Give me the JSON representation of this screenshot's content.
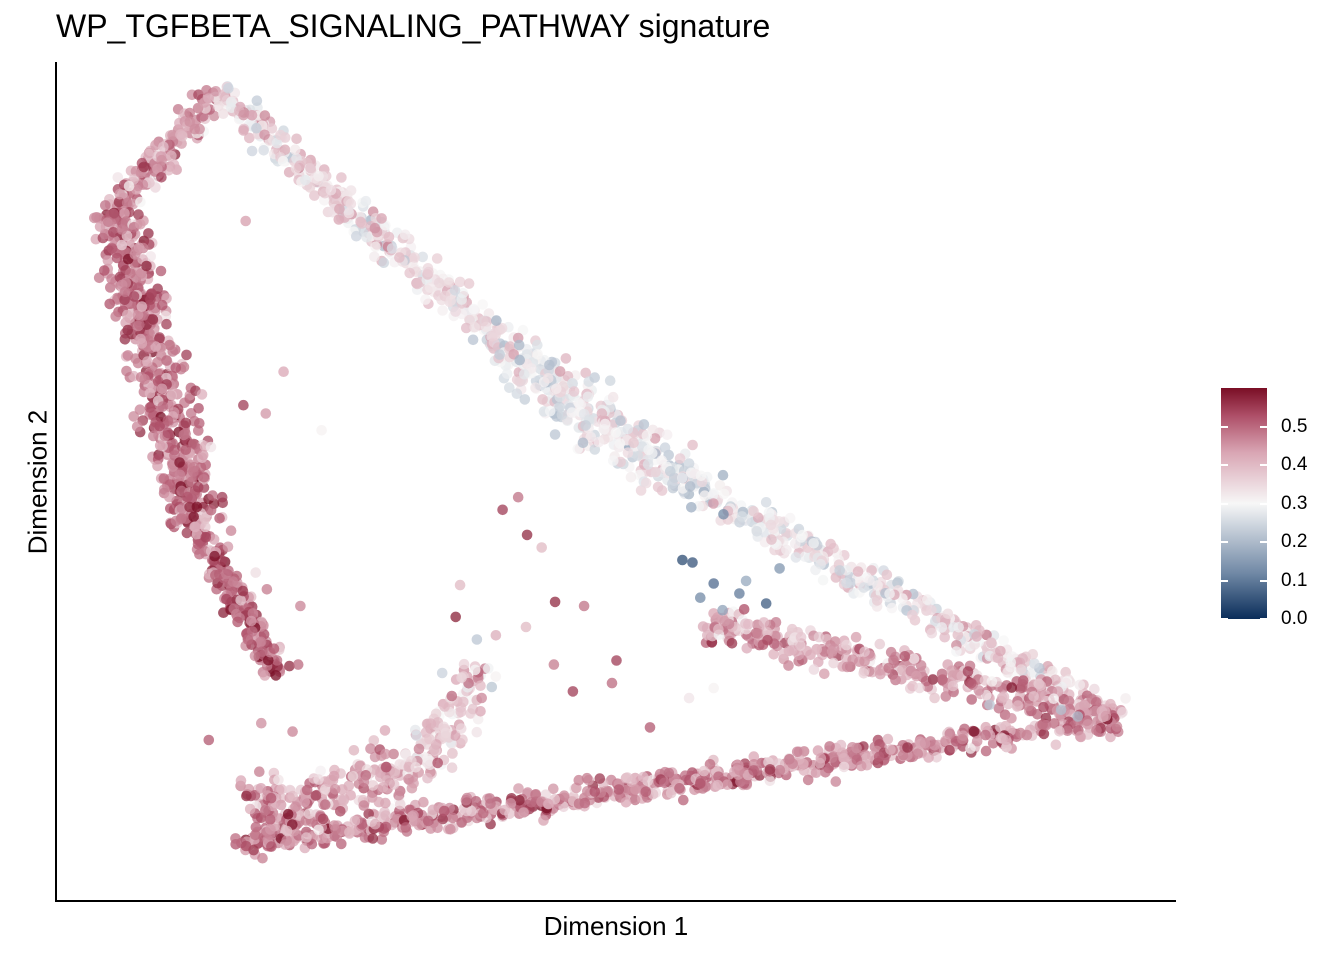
{
  "chart_data": {
    "type": "scatter",
    "title": "WP_TGFBETA_SIGNALING_PATHWAY signature",
    "xlabel": "Dimension 1",
    "ylabel": "Dimension 2",
    "x_ticks_shown": false,
    "y_ticks_shown": false,
    "grid": false,
    "legend": {
      "placement": "right",
      "type": "continuous colorbar",
      "ticks": [
        "0.0",
        "0.1",
        "0.2",
        "0.3",
        "0.4",
        "0.5"
      ],
      "tick_values": [
        0.0,
        0.1,
        0.2,
        0.3,
        0.4,
        0.5
      ],
      "range": [
        0.0,
        0.6
      ],
      "colors": {
        "low": "#0a2d5a",
        "mid": "#f7f7f7",
        "high": "#7a0e25"
      }
    },
    "xlim": [
      0,
      100
    ],
    "ylim": [
      0,
      100
    ],
    "point_opacity": 0.75,
    "branches": [
      {
        "from": [
          14.3,
          96.5
        ],
        "to": [
          5.0,
          82.0
        ],
        "values": [
          0.42,
          0.47
        ],
        "spread": 1.4
      },
      {
        "from": [
          5.0,
          82.0
        ],
        "to": [
          12.5,
          45.0
        ],
        "values": [
          0.48,
          0.5
        ],
        "spread": 2.2
      },
      {
        "from": [
          12.5,
          45.0
        ],
        "to": [
          19.5,
          27.0
        ],
        "values": [
          0.47,
          0.52
        ],
        "spread": 1.2
      },
      {
        "from": [
          14.3,
          96.5
        ],
        "to": [
          40.0,
          66.0
        ],
        "values": [
          0.36,
          0.33
        ],
        "spread": 1.5
      },
      {
        "from": [
          40.0,
          66.0
        ],
        "to": [
          56.0,
          50.0
        ],
        "values": [
          0.31,
          0.3
        ],
        "spread": 2.6
      },
      {
        "from": [
          56.0,
          50.0
        ],
        "to": [
          95.0,
          21.5
        ],
        "values": [
          0.28,
          0.38
        ],
        "spread": 1.6
      },
      {
        "from": [
          58.0,
          33.0
        ],
        "to": [
          95.0,
          21.5
        ],
        "values": [
          0.42,
          0.46
        ],
        "spread": 2.0
      },
      {
        "from": [
          16.0,
          6.5
        ],
        "to": [
          95.0,
          21.5
        ],
        "values": [
          0.47,
          0.46
        ],
        "spread": 1.5
      },
      {
        "from": [
          17.5,
          10.0
        ],
        "to": [
          32.0,
          15.0
        ],
        "values": [
          0.46,
          0.42
        ],
        "spread": 3.6
      },
      {
        "from": [
          32.0,
          15.0
        ],
        "to": [
          38.0,
          28.0
        ],
        "values": [
          0.38,
          0.36
        ],
        "spread": 1.8
      }
    ],
    "scattered_points": [
      {
        "x": 16.8,
        "y": 81.0,
        "value": 0.44
      },
      {
        "x": 11.5,
        "y": 65.0,
        "value": 0.55
      },
      {
        "x": 20.2,
        "y": 63.0,
        "value": 0.43
      },
      {
        "x": 16.6,
        "y": 59.0,
        "value": 0.55
      },
      {
        "x": 18.6,
        "y": 58.0,
        "value": 0.45
      },
      {
        "x": 23.6,
        "y": 56.0,
        "value": 0.31
      },
      {
        "x": 13.7,
        "y": 54.0,
        "value": 0.33
      },
      {
        "x": 14.7,
        "y": 48.0,
        "value": 0.55
      },
      {
        "x": 15.5,
        "y": 44.0,
        "value": 0.47
      },
      {
        "x": 17.7,
        "y": 39.0,
        "value": 0.34
      },
      {
        "x": 18.7,
        "y": 37.0,
        "value": 0.48
      },
      {
        "x": 21.7,
        "y": 35.0,
        "value": 0.47
      },
      {
        "x": 17.0,
        "y": 31.0,
        "value": 0.5
      },
      {
        "x": 21.5,
        "y": 28.0,
        "value": 0.5
      },
      {
        "x": 13.5,
        "y": 19.0,
        "value": 0.52
      },
      {
        "x": 18.2,
        "y": 21.0,
        "value": 0.46
      },
      {
        "x": 21.0,
        "y": 20.0,
        "value": 0.47
      },
      {
        "x": 39.8,
        "y": 46.5,
        "value": 0.55
      },
      {
        "x": 41.2,
        "y": 48.0,
        "value": 0.49
      },
      {
        "x": 42.0,
        "y": 43.5,
        "value": 0.57
      },
      {
        "x": 43.3,
        "y": 42.0,
        "value": 0.4
      },
      {
        "x": 36.0,
        "y": 37.5,
        "value": 0.4
      },
      {
        "x": 35.6,
        "y": 33.7,
        "value": 0.58
      },
      {
        "x": 39.2,
        "y": 31.5,
        "value": 0.42
      },
      {
        "x": 44.5,
        "y": 35.5,
        "value": 0.57
      },
      {
        "x": 47.1,
        "y": 35.0,
        "value": 0.49
      },
      {
        "x": 50.0,
        "y": 28.5,
        "value": 0.55
      },
      {
        "x": 49.6,
        "y": 25.8,
        "value": 0.5
      },
      {
        "x": 46.1,
        "y": 24.8,
        "value": 0.55
      },
      {
        "x": 53.0,
        "y": 20.5,
        "value": 0.52
      },
      {
        "x": 44.4,
        "y": 28.0,
        "value": 0.48
      },
      {
        "x": 41.9,
        "y": 32.5,
        "value": 0.4
      },
      {
        "x": 56.5,
        "y": 24.0,
        "value": 0.33
      },
      {
        "x": 58.7,
        "y": 25.2,
        "value": 0.31
      }
    ],
    "low_value_points": [
      {
        "x": 55.9,
        "y": 40.5,
        "value": 0.04
      },
      {
        "x": 56.8,
        "y": 40.2,
        "value": 0.05
      },
      {
        "x": 58.7,
        "y": 37.7,
        "value": 0.08
      },
      {
        "x": 61.0,
        "y": 36.5,
        "value": 0.1
      },
      {
        "x": 63.4,
        "y": 35.3,
        "value": 0.06
      },
      {
        "x": 64.6,
        "y": 39.5,
        "value": 0.14
      },
      {
        "x": 57.5,
        "y": 36.0,
        "value": 0.12
      },
      {
        "x": 56.7,
        "y": 46.8,
        "value": 0.18
      },
      {
        "x": 56.6,
        "y": 49.3,
        "value": 0.2
      },
      {
        "x": 55.0,
        "y": 49.6,
        "value": 0.24
      },
      {
        "x": 61.6,
        "y": 38.0,
        "value": 0.17
      },
      {
        "x": 59.5,
        "y": 34.5,
        "value": 0.16
      },
      {
        "x": 83.4,
        "y": 23.2,
        "value": 0.22
      },
      {
        "x": 89.8,
        "y": 22.6,
        "value": 0.21
      },
      {
        "x": 91.3,
        "y": 21.8,
        "value": 0.2
      },
      {
        "x": 37.5,
        "y": 31.0,
        "value": 0.22
      },
      {
        "x": 34.4,
        "y": 27.0,
        "value": 0.24
      },
      {
        "x": 32.1,
        "y": 19.5,
        "value": 0.26
      },
      {
        "x": 47.0,
        "y": 54.5,
        "value": 0.2
      },
      {
        "x": 44.5,
        "y": 55.5,
        "value": 0.22
      }
    ]
  }
}
